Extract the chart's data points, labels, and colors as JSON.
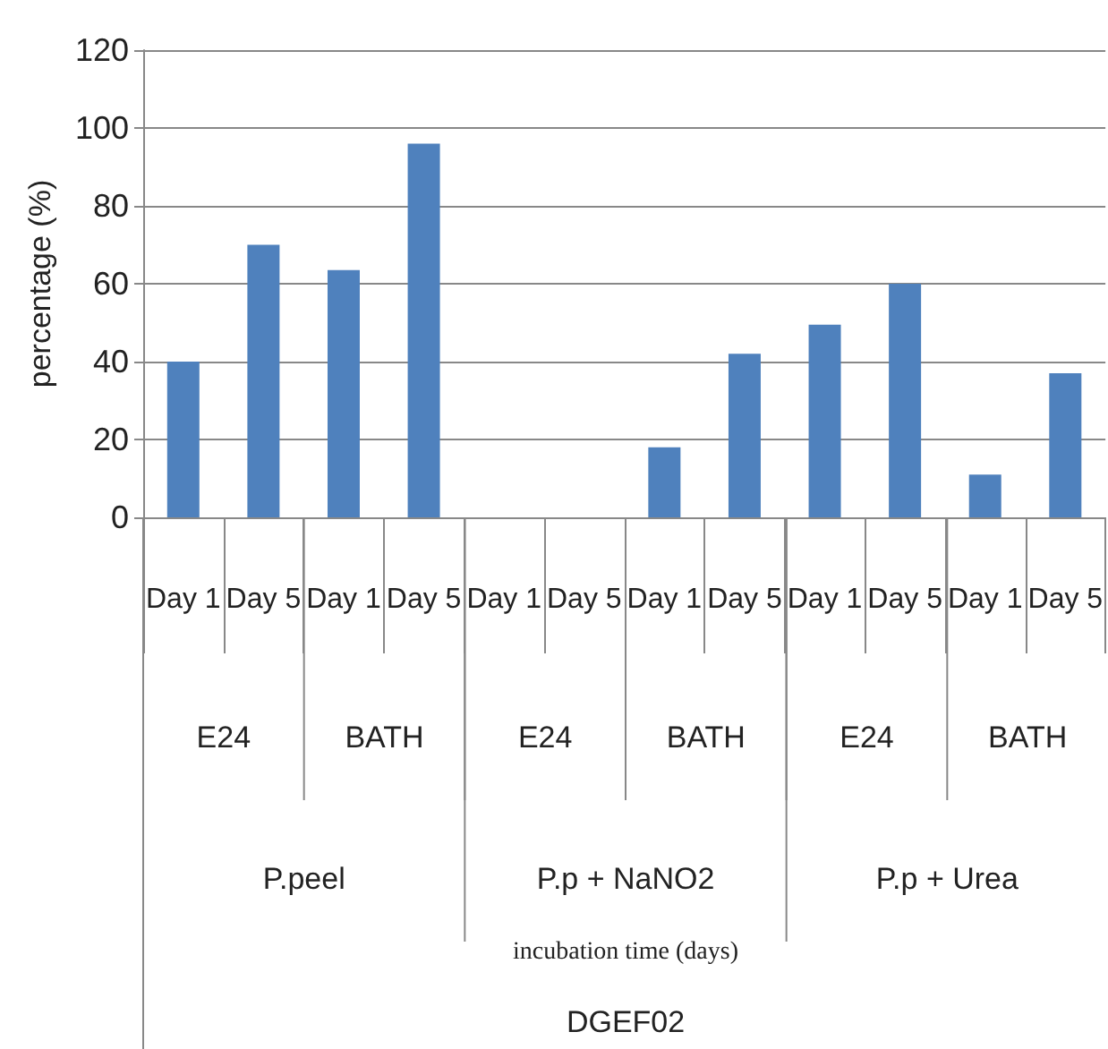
{
  "chart_data": {
    "type": "bar",
    "ylabel": "percentage (%)",
    "categories": [
      "Day 1",
      "Day 5",
      "Day 1",
      "Day 5",
      "Day 1",
      "Day 5",
      "Day 1",
      "Day 5",
      "Day 1",
      "Day 5",
      "Day 1",
      "Day 5"
    ],
    "values": [
      40,
      70,
      63.5,
      96,
      0,
      0,
      18,
      42,
      49.5,
      60,
      11,
      37
    ],
    "color": "#4f81bd",
    "ylim": [
      0,
      120
    ],
    "yticks": [
      0,
      20,
      40,
      60,
      80,
      100,
      120
    ],
    "grid": "y",
    "annotations": [
      "E24",
      "BATH",
      "E24",
      "BATH",
      "E24",
      "BATH",
      "P.peel",
      "P.p + NaNO2",
      "P.p + Urea",
      "incubation time (days)",
      "DGEF02"
    ]
  }
}
